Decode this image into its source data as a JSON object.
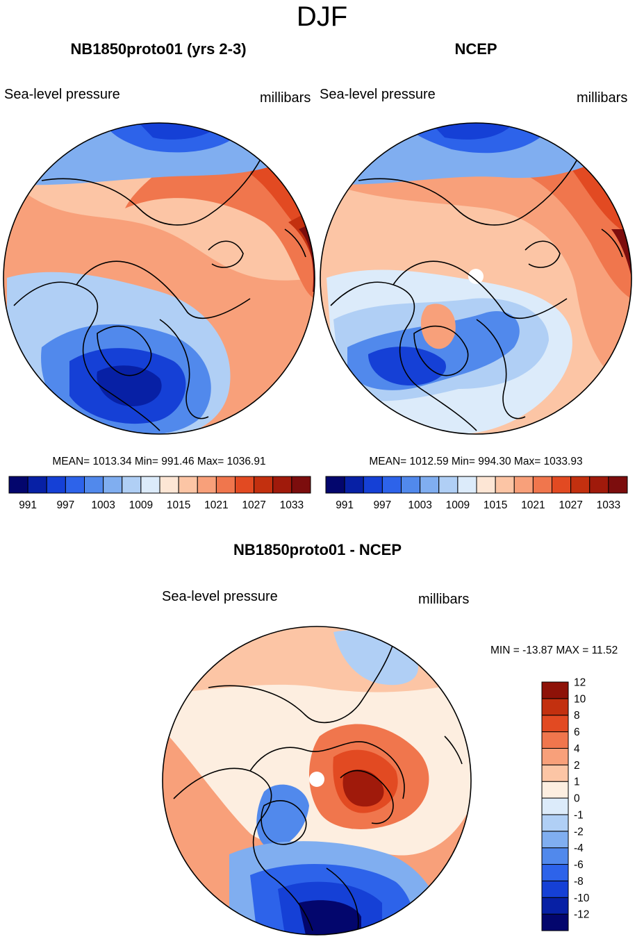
{
  "page_title": "DJF",
  "colors": {
    "diverging": [
      "#03066d",
      "#0720a5",
      "#1540d6",
      "#2d63ea",
      "#5189ec",
      "#80aef0",
      "#b0cff5",
      "#dcebfa",
      "#fde6d5",
      "#fcc5a5",
      "#f8a07a",
      "#f0764d",
      "#e24a22",
      "#c3300f",
      "#a01a0b",
      "#7c0d0d"
    ],
    "diff": [
      "#03066d",
      "#0720a5",
      "#1540d6",
      "#2d63ea",
      "#5189ec",
      "#80aef0",
      "#b0cff5",
      "#dcebfa",
      "#fdeee0",
      "#fcc5a5",
      "#f8a07a",
      "#f0764d",
      "#e24a22",
      "#c3300f",
      "#8e1208"
    ],
    "outline": "#000000"
  },
  "chart_data": [
    {
      "type": "heatmap",
      "projection": "north-polar-stereographic",
      "title": "NB1850proto01 (yrs 2-3)",
      "left_label": "Sea-level pressure",
      "right_label": "millibars",
      "stats": "MEAN= 1013.34  Min= 991.46  Max= 1036.91",
      "colorbar": {
        "orientation": "horizontal",
        "levels": [
          991,
          994,
          997,
          1000,
          1003,
          1006,
          1009,
          1012,
          1015,
          1018,
          1021,
          1024,
          1027,
          1030,
          1033
        ],
        "tick_labels": [
          "991",
          "997",
          "1003",
          "1009",
          "1015",
          "1021",
          "1027",
          "1033"
        ],
        "units": "millibars"
      },
      "range": [
        991.46,
        1036.91
      ]
    },
    {
      "type": "heatmap",
      "projection": "north-polar-stereographic",
      "title": "NCEP",
      "left_label": "Sea-level pressure",
      "right_label": "millibars",
      "stats": "MEAN= 1012.59  Min= 994.30  Max= 1033.93",
      "colorbar": {
        "orientation": "horizontal",
        "levels": [
          991,
          994,
          997,
          1000,
          1003,
          1006,
          1009,
          1012,
          1015,
          1018,
          1021,
          1024,
          1027,
          1030,
          1033
        ],
        "tick_labels": [
          "991",
          "997",
          "1003",
          "1009",
          "1015",
          "1021",
          "1027",
          "1033"
        ],
        "units": "millibars"
      },
      "range": [
        994.3,
        1033.93
      ]
    },
    {
      "type": "heatmap",
      "projection": "north-polar-stereographic",
      "title": "NB1850proto01 - NCEP",
      "left_label": "Sea-level pressure",
      "right_label": "millibars",
      "stats": "MIN = -13.87 MAX =  11.52",
      "colorbar": {
        "orientation": "vertical",
        "levels": [
          -12,
          -10,
          -8,
          -6,
          -4,
          -2,
          -1,
          0,
          1,
          2,
          4,
          6,
          8,
          10,
          12
        ],
        "tick_labels": [
          "12",
          "10",
          "8",
          "6",
          "4",
          "2",
          "1",
          "0",
          "-1",
          "-2",
          "-4",
          "-6",
          "-8",
          "-10",
          "-12"
        ],
        "units": "millibars"
      },
      "range": [
        -13.87,
        11.52
      ]
    }
  ]
}
